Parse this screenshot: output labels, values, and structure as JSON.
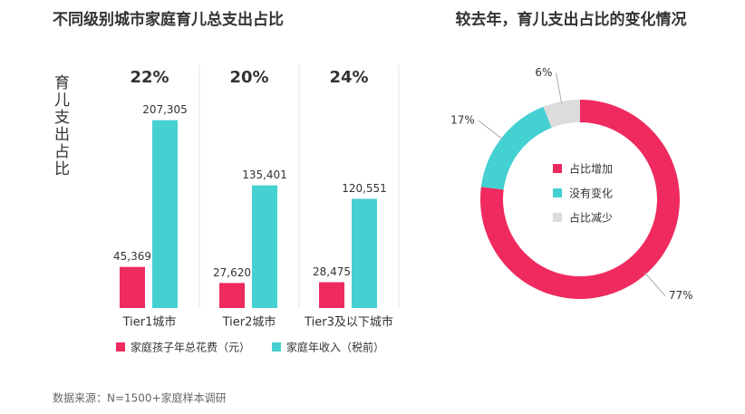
{
  "chart_data": [
    {
      "type": "bar",
      "title": "不同级别城市家庭育儿总支出占比",
      "ylabel": "育儿支出占比",
      "categories": [
        "Tier1城市",
        "Tier2城市",
        "Tier3及以下城市"
      ],
      "group_labels": [
        "22%",
        "20%",
        "24%"
      ],
      "series": [
        {
          "name": "家庭孩子年总花费（元）",
          "color": "#ee2a5f",
          "values": [
            45369,
            27620,
            28475
          ],
          "value_labels": [
            "45,369",
            "27,620",
            "28,475"
          ]
        },
        {
          "name": "家庭年收入（税前）",
          "color": "#45d0d2",
          "values": [
            207305,
            135401,
            120551
          ],
          "value_labels": [
            "207,305",
            "135,401",
            "120,551"
          ]
        }
      ],
      "ylim": [
        0,
        260000
      ],
      "source": "数据来源：N=1500+家庭样本调研"
    },
    {
      "type": "donut",
      "title": "较去年，育儿支出占比的变化情况",
      "categories": [
        "占比增加",
        "没有变化",
        "占比减少"
      ],
      "values": [
        77,
        17,
        6
      ],
      "value_labels": [
        "77%",
        "17%",
        "6%"
      ],
      "colors": [
        "#ee2a5f",
        "#45d0d2",
        "#dcdcdc"
      ]
    }
  ]
}
